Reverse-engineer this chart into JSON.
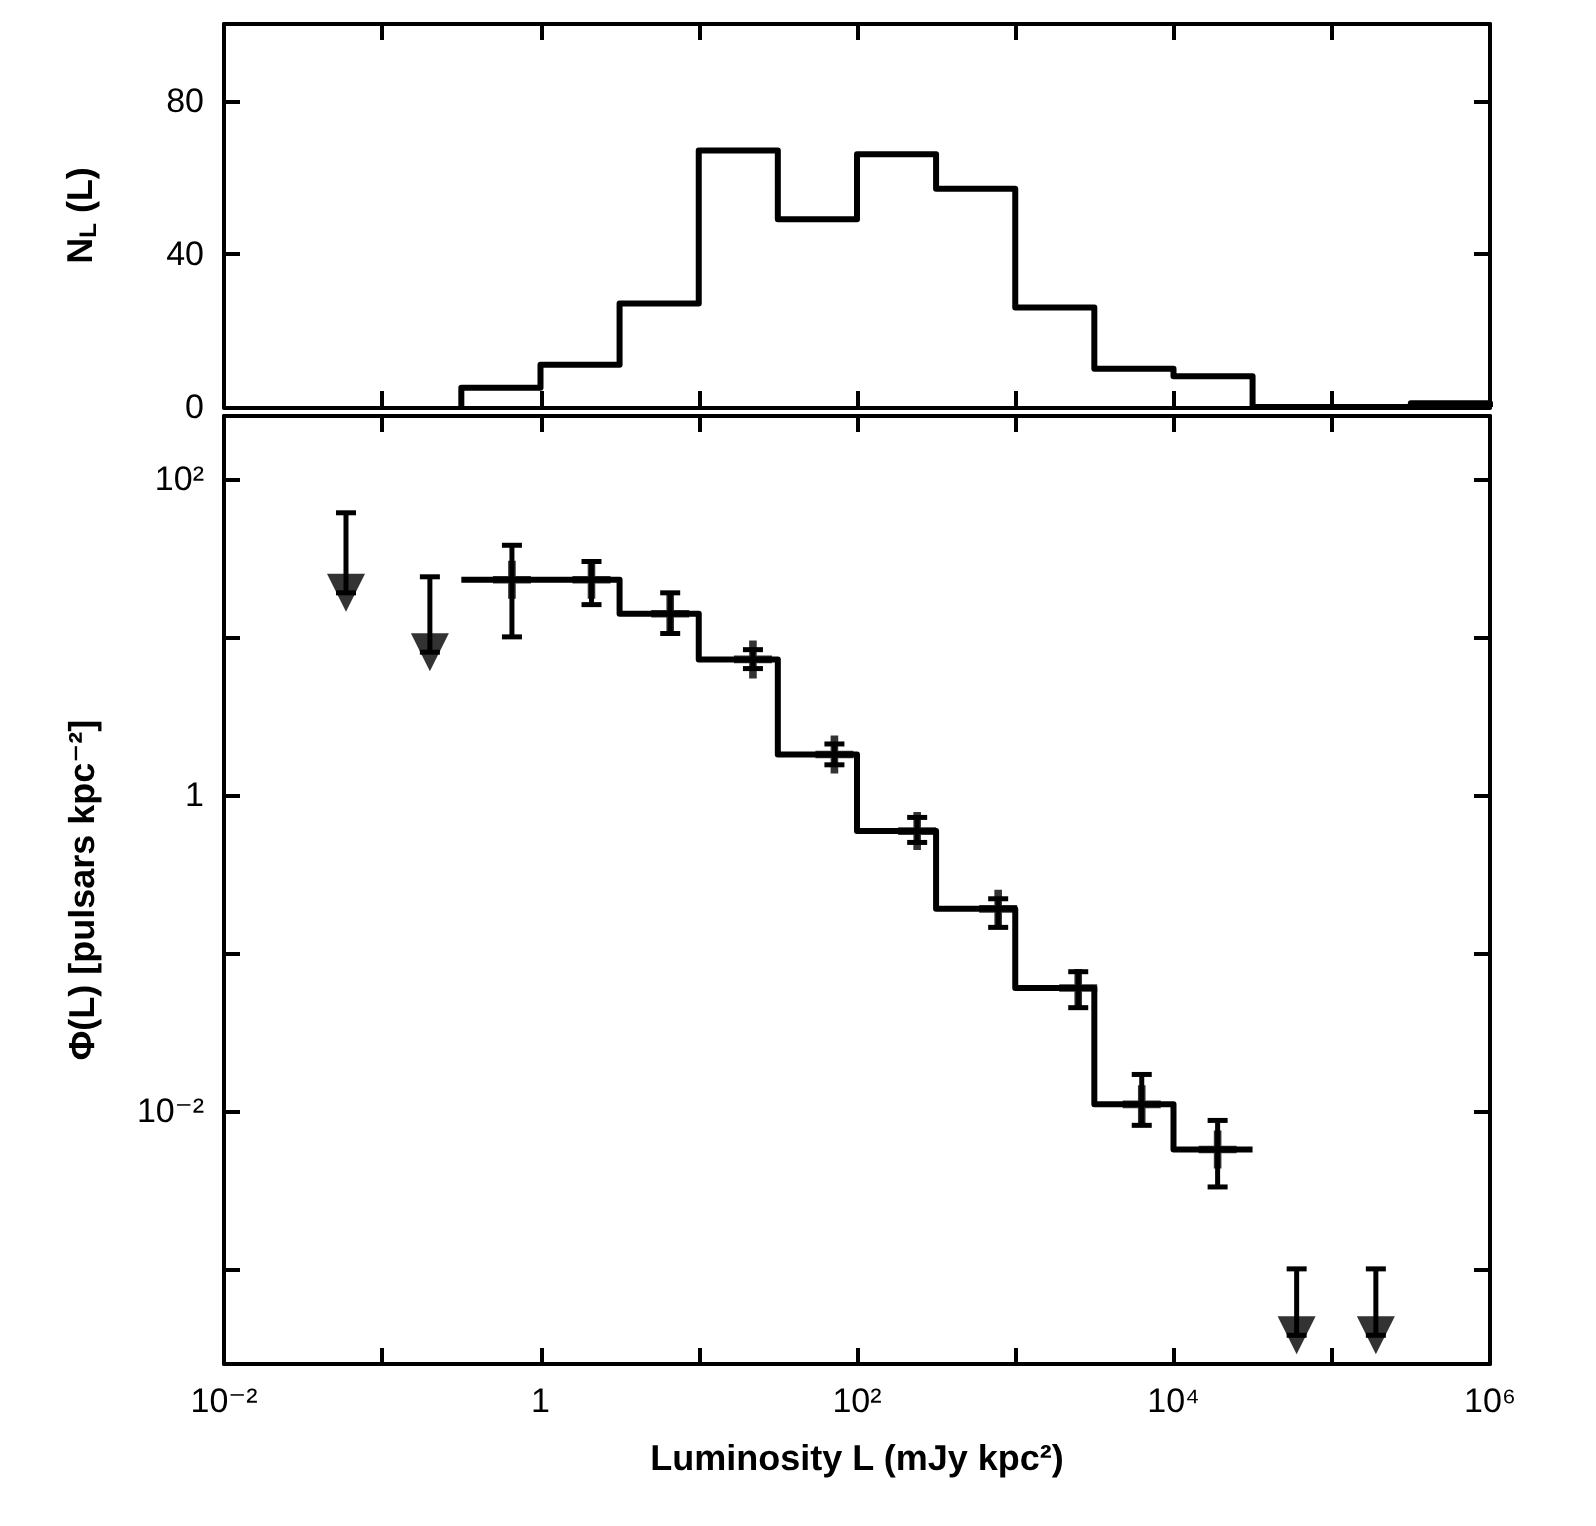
{
  "chart_data": [
    {
      "type": "histogram",
      "ylabel": "N$_{L}$ (L)",
      "bins": [
        0.316,
        1,
        3.16,
        10,
        31.6,
        100,
        316,
        1000,
        3160,
        10000,
        31600,
        100000,
        316000,
        1000000
      ],
      "values": [
        5,
        11,
        27,
        67,
        49,
        66,
        57,
        26,
        10,
        8,
        0,
        0,
        1
      ],
      "color": "#000000",
      "xlim": [
        0.01,
        1000000
      ],
      "xticks": [
        {
          "value": 0.01,
          "label": null
        },
        {
          "value": 0.1,
          "label": null
        },
        {
          "value": 1,
          "label": null
        },
        {
          "value": 10,
          "label": null
        },
        {
          "value": 100,
          "label": null
        },
        {
          "value": 1000,
          "label": null
        },
        {
          "value": 10000,
          "label": null
        },
        {
          "value": 100000,
          "label": null
        },
        {
          "value": 1000000,
          "label": null
        }
      ],
      "ylim": [
        0,
        100
      ],
      "yticks": [
        0,
        40,
        80
      ],
      "log": "x",
      "tick_labels": "y",
      "grid": false
    },
    {
      "type": "step",
      "xlabel": "Luminosity L (mJy kpc²)",
      "ylabel": "Φ(L) [pulsars kpc⁻²]",
      "xlim": [
        0.01,
        1000000
      ],
      "ylim": [
        0.00025,
        250
      ],
      "xticks": [
        {
          "value": 0.01,
          "label": "10⁻²"
        },
        {
          "value": 0.1,
          "label": null
        },
        {
          "value": 1,
          "label": "1"
        },
        {
          "value": 10,
          "label": null
        },
        {
          "value": 100,
          "label": "10²"
        },
        {
          "value": 1000,
          "label": null
        },
        {
          "value": 10000,
          "label": "10⁴"
        },
        {
          "value": 100000,
          "label": null
        },
        {
          "value": 1000000,
          "label": "10⁶"
        }
      ],
      "yticks": [
        {
          "value": 100,
          "label": "10²"
        },
        {
          "value": 10,
          "label": null
        },
        {
          "value": 1,
          "label": "1"
        },
        {
          "value": 0.1,
          "label": null
        },
        {
          "value": 0.01,
          "label": "10⁻²"
        },
        {
          "value": 0.001,
          "label": null
        }
      ],
      "log": "xy",
      "grid": false,
      "series": [
        {
          "type": "step",
          "color": "#000000",
          "x": [
            0.316,
            1,
            3.16,
            10,
            31.6,
            100,
            316,
            1000,
            3160,
            10000,
            31600
          ],
          "values": [
            23,
            23,
            14,
            7.2,
            1.8,
            0.59,
            0.19,
            0.06,
            0.011,
            0.0057,
            0.0057
          ]
        },
        {
          "type": "scatter",
          "color": "#000000",
          "marker": "cross",
          "x": [
            0.66,
            2.1,
            6.6,
            22,
            72,
            240,
            780,
            2500,
            6300,
            19000
          ],
          "values": [
            23,
            23,
            14,
            7.2,
            1.8,
            0.59,
            0.19,
            0.06,
            0.011,
            0.0057
          ],
          "errors": [
            [
              10,
              38
            ],
            [
              16,
              30
            ],
            [
              10.5,
              19
            ],
            [
              6.3,
              8.3
            ],
            [
              1.55,
              2.1
            ],
            [
              0.5,
              0.72
            ],
            [
              0.145,
              0.22
            ],
            [
              0.045,
              0.076
            ],
            [
              0.0081,
              0.017
            ],
            [
              0.0033,
              0.0087
            ]
          ]
        },
        {
          "type": "scatter",
          "color": "#000000",
          "marker": "triangle",
          "x": [
            0.059,
            0.2,
            60000,
            190000
          ],
          "values": [
            19,
            8,
            0.00038,
            0.00038
          ],
          "errors": [
            [
              19,
              61
            ],
            [
              8,
              24
            ],
            [
              0.00038,
              0.001
            ],
            [
              0.00038,
              0.001
            ]
          ]
        }
      ]
    }
  ]
}
